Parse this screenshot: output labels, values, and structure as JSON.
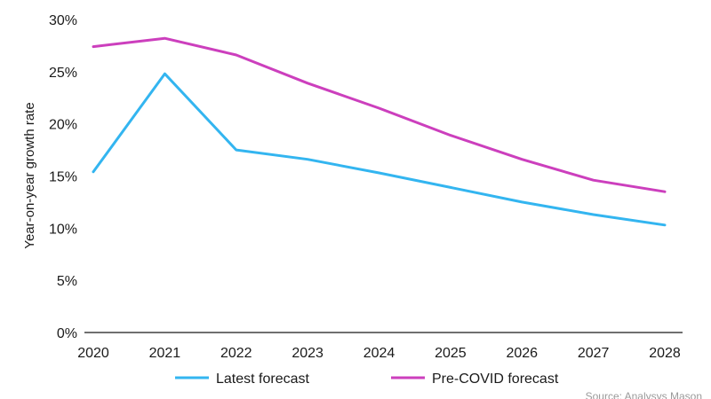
{
  "chart_data": {
    "type": "line",
    "title": "",
    "xlabel": "",
    "ylabel": "Year-on-year growth rate",
    "x": [
      "2020",
      "2021",
      "2022",
      "2023",
      "2024",
      "2025",
      "2026",
      "2027",
      "2028"
    ],
    "ylim": [
      0,
      30
    ],
    "y_ticks": [
      "0%",
      "5%",
      "10%",
      "15%",
      "20%",
      "25%",
      "30%"
    ],
    "y_tick_values": [
      0,
      5,
      10,
      15,
      20,
      25,
      30
    ],
    "grid": false,
    "legend_position": "bottom",
    "series": [
      {
        "name": "Latest forecast",
        "color": "#33b5f0",
        "values": [
          15.4,
          24.8,
          17.5,
          16.6,
          15.3,
          13.9,
          12.5,
          11.3,
          10.3
        ]
      },
      {
        "name": "Pre-COVID forecast",
        "color": "#cc3fbd",
        "values": [
          27.4,
          28.2,
          26.6,
          23.9,
          21.5,
          18.9,
          16.6,
          14.6,
          13.5
        ]
      }
    ],
    "source": "Source: Analysys Mason"
  }
}
